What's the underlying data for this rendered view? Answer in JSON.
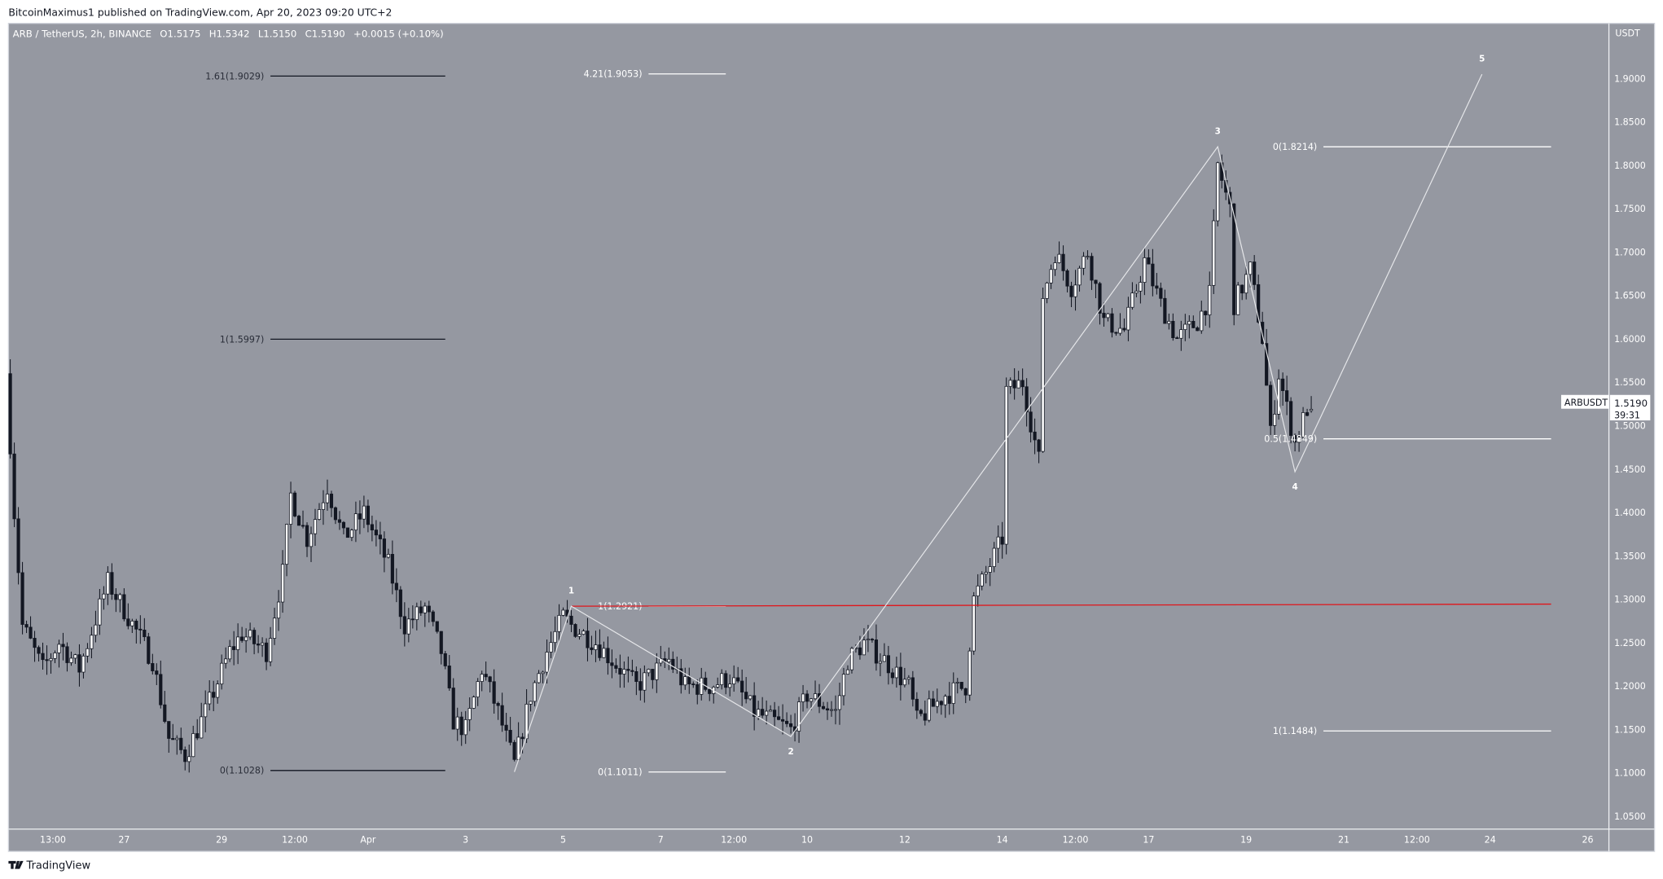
{
  "header": {
    "published": "BitcoinMaximus1 published on TradingView.com, Apr 20, 2023 09:20 UTC+2"
  },
  "legend": {
    "symbol": "ARB / TetherUS, 2h, BINANCE",
    "o_label": "O",
    "o": "1.5175",
    "h_label": "H",
    "h": "1.5342",
    "l_label": "L",
    "l": "1.5150",
    "c_label": "C",
    "c": "1.5190",
    "change": "+0.0015 (+0.10%)"
  },
  "footer": {
    "brand": "TradingView"
  },
  "colors": {
    "background": "#9598a1",
    "up_body": "#ffffff",
    "down_body": "#131722",
    "wick": "#131722",
    "red_line": "#e0161b",
    "wave_line": "#e6e7ea",
    "fib_white": "#ffffff",
    "fib_black": "#131722"
  },
  "chart_data": {
    "type": "candlestick",
    "interval": "2h",
    "currency": "USDT",
    "ylim": [
      1.03,
      1.93
    ],
    "y_ticks": [
      "1.0500",
      "1.1000",
      "1.1500",
      "1.2000",
      "1.2500",
      "1.3000",
      "1.3500",
      "1.4000",
      "1.4500",
      "1.5000",
      "1.5500",
      "1.6000",
      "1.6500",
      "1.7000",
      "1.7500",
      "1.8000",
      "1.8500",
      "1.9000"
    ],
    "x_ticks": [
      {
        "label": "13:00",
        "t": "2023-03-25 13:00"
      },
      {
        "label": "27",
        "t": "2023-03-27 00:00"
      },
      {
        "label": "29",
        "t": "2023-03-29 00:00"
      },
      {
        "label": "12:00",
        "t": "2023-03-30 12:00"
      },
      {
        "label": "Apr",
        "t": "2023-04-01 00:00"
      },
      {
        "label": "3",
        "t": "2023-04-03 00:00"
      },
      {
        "label": "5",
        "t": "2023-04-05 00:00"
      },
      {
        "label": "7",
        "t": "2023-04-07 00:00"
      },
      {
        "label": "12:00",
        "t": "2023-04-08 12:00"
      },
      {
        "label": "10",
        "t": "2023-04-10 00:00"
      },
      {
        "label": "12",
        "t": "2023-04-12 00:00"
      },
      {
        "label": "14",
        "t": "2023-04-14 00:00"
      },
      {
        "label": "12:00",
        "t": "2023-04-15 12:00"
      },
      {
        "label": "17",
        "t": "2023-04-17 00:00"
      },
      {
        "label": "19",
        "t": "2023-04-19 00:00"
      },
      {
        "label": "21",
        "t": "2023-04-21 00:00"
      },
      {
        "label": "12:00",
        "t": "2023-04-22 12:00"
      },
      {
        "label": "24",
        "t": "2023-04-24 00:00"
      },
      {
        "label": "26",
        "t": "2023-04-26 00:00"
      }
    ],
    "price_path": [
      [
        "2023-03-24 16:00",
        1.48
      ],
      [
        "2023-03-24 18:00",
        1.4
      ],
      [
        "2023-03-24 22:00",
        1.27
      ],
      [
        "2023-03-25 08:00",
        1.22
      ],
      [
        "2023-03-25 16:00",
        1.25
      ],
      [
        "2023-03-26 02:00",
        1.22
      ],
      [
        "2023-03-26 16:00",
        1.32
      ],
      [
        "2023-03-27 02:00",
        1.28
      ],
      [
        "2023-03-27 14:00",
        1.23
      ],
      [
        "2023-03-27 22:00",
        1.14
      ],
      [
        "2023-03-28 06:00",
        1.12
      ],
      [
        "2023-03-28 16:00",
        1.17
      ],
      [
        "2023-03-29 04:00",
        1.24
      ],
      [
        "2023-03-29 10:00",
        1.26
      ],
      [
        "2023-03-29 22:00",
        1.24
      ],
      [
        "2023-03-30 06:00",
        1.33
      ],
      [
        "2023-03-30 10:00",
        1.42
      ],
      [
        "2023-03-30 18:00",
        1.37
      ],
      [
        "2023-03-31 04:00",
        1.43
      ],
      [
        "2023-03-31 12:00",
        1.37
      ],
      [
        "2023-03-31 22:00",
        1.4
      ],
      [
        "2023-04-01 10:00",
        1.34
      ],
      [
        "2023-04-01 18:00",
        1.27
      ],
      [
        "2023-04-02 04:00",
        1.29
      ],
      [
        "2023-04-02 12:00",
        1.24
      ],
      [
        "2023-04-02 18:00",
        1.16
      ],
      [
        "2023-04-03 00:00",
        1.15
      ],
      [
        "2023-04-03 08:00",
        1.22
      ],
      [
        "2023-04-03 16:00",
        1.17
      ],
      [
        "2023-04-04 00:00",
        1.11
      ],
      [
        "2023-04-04 08:00",
        1.19
      ],
      [
        "2023-04-04 16:00",
        1.24
      ],
      [
        "2023-04-05 00:00",
        1.28
      ],
      [
        "2023-04-05 04:00",
        1.27
      ],
      [
        "2023-04-05 16:00",
        1.25
      ],
      [
        "2023-04-06 04:00",
        1.22
      ],
      [
        "2023-04-06 12:00",
        1.2
      ],
      [
        "2023-04-07 04:00",
        1.23
      ],
      [
        "2023-04-07 12:00",
        1.2
      ],
      [
        "2023-04-08 00:00",
        1.2
      ],
      [
        "2023-04-08 10:00",
        1.21
      ],
      [
        "2023-04-08 22:00",
        1.17
      ],
      [
        "2023-04-09 16:00",
        1.15
      ],
      [
        "2023-04-10 00:00",
        1.19
      ],
      [
        "2023-04-10 14:00",
        1.17
      ],
      [
        "2023-04-10 20:00",
        1.23
      ],
      [
        "2023-04-11 04:00",
        1.25
      ],
      [
        "2023-04-11 14:00",
        1.23
      ],
      [
        "2023-04-12 02:00",
        1.2
      ],
      [
        "2023-04-12 06:00",
        1.16
      ],
      [
        "2023-04-12 20:00",
        1.19
      ],
      [
        "2023-04-13 06:00",
        1.2
      ],
      [
        "2023-04-13 10:00",
        1.3
      ],
      [
        "2023-04-13 16:00",
        1.33
      ],
      [
        "2023-04-14 00:00",
        1.37
      ],
      [
        "2023-04-14 02:00",
        1.54
      ],
      [
        "2023-04-14 10:00",
        1.55
      ],
      [
        "2023-04-14 18:00",
        1.46
      ],
      [
        "2023-04-14 20:00",
        1.65
      ],
      [
        "2023-04-15 02:00",
        1.7
      ],
      [
        "2023-04-15 10:00",
        1.66
      ],
      [
        "2023-04-15 18:00",
        1.7
      ],
      [
        "2023-04-16 02:00",
        1.62
      ],
      [
        "2023-04-16 12:00",
        1.61
      ],
      [
        "2023-04-16 22:00",
        1.69
      ],
      [
        "2023-04-17 06:00",
        1.64
      ],
      [
        "2023-04-17 14:00",
        1.6
      ],
      [
        "2023-04-18 00:00",
        1.62
      ],
      [
        "2023-04-18 06:00",
        1.65
      ],
      [
        "2023-04-18 10:00",
        1.8
      ],
      [
        "2023-04-18 16:00",
        1.75
      ],
      [
        "2023-04-18 18:00",
        1.64
      ],
      [
        "2023-04-19 02:00",
        1.68
      ],
      [
        "2023-04-19 08:00",
        1.6
      ],
      [
        "2023-04-19 12:00",
        1.49
      ],
      [
        "2023-04-19 16:00",
        1.56
      ],
      [
        "2023-04-19 20:00",
        1.52
      ],
      [
        "2023-04-20 00:00",
        1.48
      ],
      [
        "2023-04-20 06:00",
        1.52
      ],
      [
        "2023-04-20 08:00",
        1.519
      ]
    ],
    "last_candle": {
      "t": "2023-04-20 08:00",
      "o": 1.5175,
      "h": 1.5342,
      "l": 1.515,
      "c": 1.519
    },
    "wave": [
      {
        "label": "",
        "t": "2023-04-04 00:00",
        "p": 1.1011
      },
      {
        "label": "1",
        "t": "2023-04-05 04:00",
        "p": 1.2921
      },
      {
        "label": "2",
        "t": "2023-04-09 16:00",
        "p": 1.142
      },
      {
        "label": "3",
        "t": "2023-04-18 10:00",
        "p": 1.8214
      },
      {
        "label": "4",
        "t": "2023-04-20 00:00",
        "p": 1.447
      },
      {
        "label": "5",
        "t": "2023-04-23 20:00",
        "p": 1.905
      }
    ],
    "fib_sets": [
      {
        "color": "black",
        "t0": "2023-03-30 00:00",
        "t1": "2023-04-02 14:00",
        "levels": [
          {
            "label": "1.61(1.9029)",
            "p": 1.9029
          },
          {
            "label": "1(1.5997)",
            "p": 1.5997
          },
          {
            "label": "0(1.1028)",
            "p": 1.1028
          }
        ]
      },
      {
        "color": "white",
        "t0": "2023-04-06 18:00",
        "t1": "2023-04-08 08:00",
        "levels": [
          {
            "label": "4.21(1.9053)",
            "p": 1.9053
          },
          {
            "label": "1(1.2921)",
            "p": 1.2921
          },
          {
            "label": "0(1.1011)",
            "p": 1.1011
          }
        ]
      },
      {
        "color": "white",
        "t0": "2023-04-20 14:00",
        "t1": "2023-04-25 06:00",
        "levels": [
          {
            "label": "0(1.8214)",
            "p": 1.8214
          },
          {
            "label": "0.5(1.4849)",
            "p": 1.4849
          },
          {
            "label": "1(1.1484)",
            "p": 1.1484
          }
        ]
      }
    ],
    "red_line": {
      "t0": "2023-04-05 04:00",
      "t1": "2023-04-25 06:00",
      "p0": 1.2921,
      "p1": 1.2945
    },
    "price_label": {
      "symbol": "ARBUSDT",
      "price": "1.5190",
      "countdown": "39:31"
    }
  }
}
